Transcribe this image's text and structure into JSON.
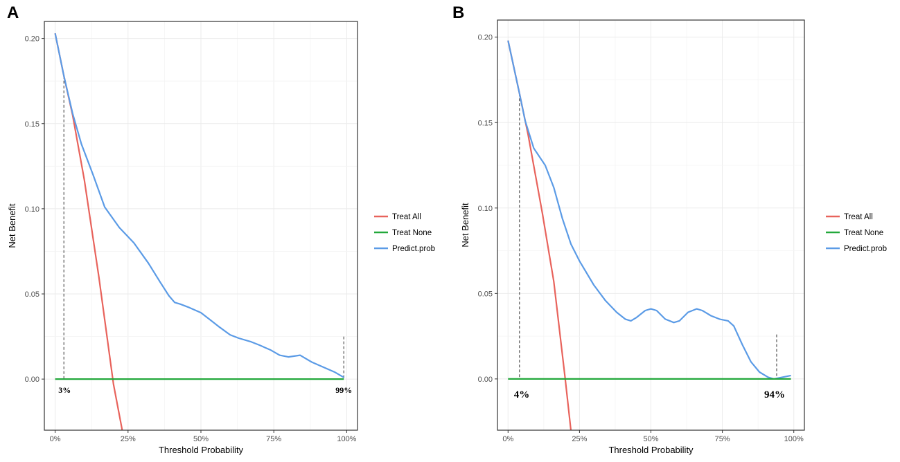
{
  "chart_data": [
    {
      "panel": "A",
      "type": "line",
      "xlabel": "Threshold Probability",
      "ylabel": "Net Benefit",
      "xlim": [
        0,
        1
      ],
      "ylim": [
        -0.03,
        0.21
      ],
      "x_ticks": [
        0,
        0.25,
        0.5,
        0.75,
        1.0
      ],
      "x_tick_labels": [
        "0%",
        "25%",
        "50%",
        "75%",
        "100%"
      ],
      "y_ticks": [
        0.0,
        0.05,
        0.1,
        0.15,
        0.2
      ],
      "y_tick_labels": [
        "0.00",
        "0.05",
        "0.10",
        "0.15",
        "0.20"
      ],
      "grid": true,
      "legend_position": "right",
      "series": [
        {
          "name": "Treat All",
          "color": "#e8635c",
          "x": [
            0,
            0.03,
            0.06,
            0.1,
            0.15,
            0.2,
            0.23
          ],
          "y": [
            0.203,
            0.178,
            0.155,
            0.117,
            0.06,
            -0.003,
            -0.03
          ]
        },
        {
          "name": "Treat None",
          "color": "#23a83b",
          "x": [
            0,
            0.99
          ],
          "y": [
            0,
            0
          ]
        },
        {
          "name": "Predict.prob",
          "color": "#5b9be6",
          "x": [
            0,
            0.03,
            0.06,
            0.09,
            0.13,
            0.17,
            0.22,
            0.27,
            0.32,
            0.36,
            0.39,
            0.41,
            0.43,
            0.46,
            0.5,
            0.53,
            0.56,
            0.6,
            0.63,
            0.67,
            0.7,
            0.74,
            0.77,
            0.8,
            0.84,
            0.86,
            0.88,
            0.92,
            0.96,
            0.99
          ],
          "y": [
            0.203,
            0.178,
            0.156,
            0.138,
            0.12,
            0.101,
            0.089,
            0.08,
            0.068,
            0.057,
            0.049,
            0.045,
            0.044,
            0.042,
            0.039,
            0.035,
            0.031,
            0.026,
            0.024,
            0.022,
            0.02,
            0.017,
            0.014,
            0.013,
            0.014,
            0.012,
            0.01,
            0.007,
            0.004,
            0.001
          ]
        }
      ],
      "annotations": [
        {
          "text": "3%",
          "x": 0.03,
          "y_top": 0.178
        },
        {
          "text": "99%",
          "x": 0.99,
          "y_top": 0.025
        }
      ]
    },
    {
      "panel": "B",
      "type": "line",
      "xlabel": "Threshold Probability",
      "ylabel": "Net Benefit",
      "xlim": [
        0,
        1
      ],
      "ylim": [
        -0.03,
        0.21
      ],
      "x_ticks": [
        0,
        0.25,
        0.5,
        0.75,
        1.0
      ],
      "x_tick_labels": [
        "0%",
        "25%",
        "50%",
        "75%",
        "100%"
      ],
      "y_ticks": [
        0.0,
        0.05,
        0.1,
        0.15,
        0.2
      ],
      "y_tick_labels": [
        "0.00",
        "0.05",
        "0.10",
        "0.15",
        "0.20"
      ],
      "grid": true,
      "legend_position": "right",
      "series": [
        {
          "name": "Treat All",
          "color": "#e8635c",
          "x": [
            0,
            0.04,
            0.07,
            0.12,
            0.16,
            0.2,
            0.22
          ],
          "y": [
            0.198,
            0.167,
            0.143,
            0.097,
            0.057,
            0.0,
            -0.03
          ]
        },
        {
          "name": "Treat None",
          "color": "#23a83b",
          "x": [
            0,
            0.99
          ],
          "y": [
            0,
            0
          ]
        },
        {
          "name": "Predict.prob",
          "color": "#5b9be6",
          "x": [
            0,
            0.04,
            0.06,
            0.09,
            0.13,
            0.16,
            0.19,
            0.22,
            0.25,
            0.3,
            0.34,
            0.38,
            0.41,
            0.43,
            0.45,
            0.48,
            0.5,
            0.52,
            0.55,
            0.58,
            0.6,
            0.63,
            0.66,
            0.68,
            0.71,
            0.74,
            0.77,
            0.79,
            0.82,
            0.85,
            0.88,
            0.91,
            0.93,
            0.96,
            0.99
          ],
          "y": [
            0.198,
            0.167,
            0.151,
            0.135,
            0.125,
            0.112,
            0.094,
            0.079,
            0.069,
            0.055,
            0.046,
            0.039,
            0.035,
            0.034,
            0.036,
            0.04,
            0.041,
            0.04,
            0.035,
            0.033,
            0.034,
            0.039,
            0.041,
            0.04,
            0.037,
            0.035,
            0.034,
            0.031,
            0.02,
            0.01,
            0.004,
            0.001,
            0.0,
            0.001,
            0.002
          ]
        }
      ],
      "annotations": [
        {
          "text": "4%",
          "x": 0.04,
          "y_top": 0.167
        },
        {
          "text": "94%",
          "x": 0.94,
          "y_top": 0.026
        }
      ]
    }
  ]
}
